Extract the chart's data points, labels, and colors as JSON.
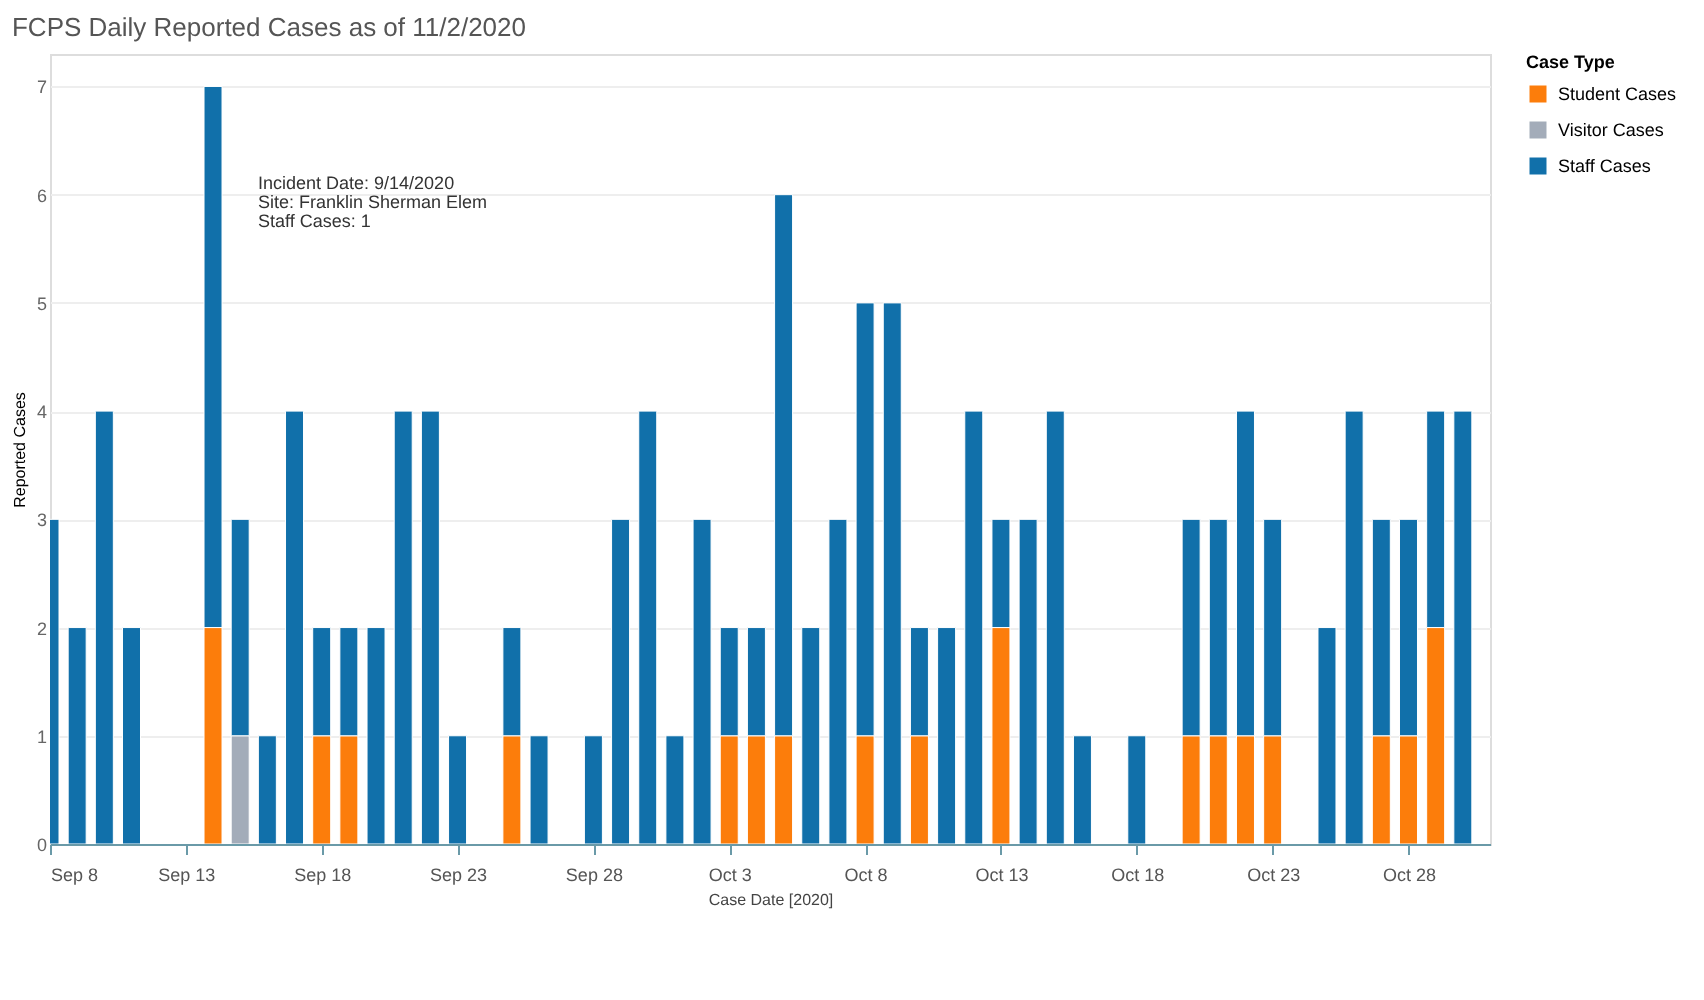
{
  "chart_data": {
    "type": "bar",
    "title": "FCPS Daily Reported Cases as of 11/2/2020",
    "xlabel": "Case Date [2020]",
    "ylabel": "Reported Cases",
    "legend_title": "Case Type",
    "stacked": true,
    "x": [
      "2020-09-08",
      "2020-09-09",
      "2020-09-10",
      "2020-09-11",
      "2020-09-14",
      "2020-09-15",
      "2020-09-16",
      "2020-09-17",
      "2020-09-18",
      "2020-09-19",
      "2020-09-20",
      "2020-09-21",
      "2020-09-22",
      "2020-09-23",
      "2020-09-25",
      "2020-09-26",
      "2020-09-28",
      "2020-09-29",
      "2020-09-30",
      "2020-10-01",
      "2020-10-02",
      "2020-10-03",
      "2020-10-04",
      "2020-10-05",
      "2020-10-06",
      "2020-10-07",
      "2020-10-08",
      "2020-10-09",
      "2020-10-10",
      "2020-10-11",
      "2020-10-12",
      "2020-10-13",
      "2020-10-14",
      "2020-10-15",
      "2020-10-16",
      "2020-10-18",
      "2020-10-20",
      "2020-10-21",
      "2020-10-22",
      "2020-10-23",
      "2020-10-25",
      "2020-10-26",
      "2020-10-27",
      "2020-10-28",
      "2020-10-29",
      "2020-10-30"
    ],
    "series": [
      {
        "name": "Student Cases",
        "color": "#fc7d0b",
        "values": [
          null,
          null,
          null,
          null,
          2,
          null,
          null,
          null,
          1,
          1,
          null,
          null,
          null,
          null,
          1,
          null,
          null,
          null,
          null,
          null,
          null,
          1,
          1,
          1,
          null,
          null,
          1,
          null,
          1,
          null,
          null,
          2,
          null,
          null,
          null,
          null,
          1,
          1,
          1,
          1,
          null,
          null,
          1,
          1,
          2,
          null
        ]
      },
      {
        "name": "Visitor Cases",
        "color": "#a3acb9",
        "values": [
          null,
          null,
          null,
          null,
          null,
          1,
          null,
          null,
          null,
          null,
          null,
          null,
          null,
          null,
          null,
          null,
          null,
          null,
          null,
          null,
          null,
          null,
          null,
          null,
          null,
          null,
          null,
          null,
          null,
          null,
          null,
          null,
          null,
          null,
          null,
          null,
          null,
          null,
          null,
          null,
          null,
          null,
          null,
          null,
          null,
          null
        ]
      },
      {
        "name": "Staff Cases",
        "color": "#1170aa",
        "values": [
          3,
          2,
          4,
          2,
          5,
          2,
          1,
          4,
          1,
          1,
          2,
          4,
          4,
          1,
          1,
          1,
          1,
          3,
          4,
          1,
          3,
          1,
          1,
          5,
          2,
          3,
          4,
          5,
          1,
          2,
          4,
          1,
          3,
          4,
          1,
          1,
          2,
          2,
          3,
          2,
          2,
          4,
          2,
          2,
          2,
          4
        ]
      }
    ],
    "xlim": [
      "2020-09-08",
      "2020-10-31"
    ],
    "xticks": [
      {
        "value": "2020-09-08",
        "label": "Sep 8"
      },
      {
        "value": "2020-09-13",
        "label": "Sep 13"
      },
      {
        "value": "2020-09-18",
        "label": "Sep 18"
      },
      {
        "value": "2020-09-23",
        "label": "Sep 23"
      },
      {
        "value": "2020-09-28",
        "label": "Sep 28"
      },
      {
        "value": "2020-10-03",
        "label": "Oct 3"
      },
      {
        "value": "2020-10-08",
        "label": "Oct 8"
      },
      {
        "value": "2020-10-13",
        "label": "Oct 13"
      },
      {
        "value": "2020-10-18",
        "label": "Oct 18"
      },
      {
        "value": "2020-10-23",
        "label": "Oct 23"
      },
      {
        "value": "2020-10-28",
        "label": "Oct 28"
      }
    ],
    "ylim": [
      0,
      7.3
    ],
    "yticks": [
      0,
      1,
      2,
      3,
      4,
      5,
      6,
      7
    ],
    "grid": "y",
    "legend": "top right",
    "annotations": [
      "Incident Date: 9/14/2020",
      "Site: Franklin Sherman Elem",
      "Staff Cases: 1"
    ]
  }
}
